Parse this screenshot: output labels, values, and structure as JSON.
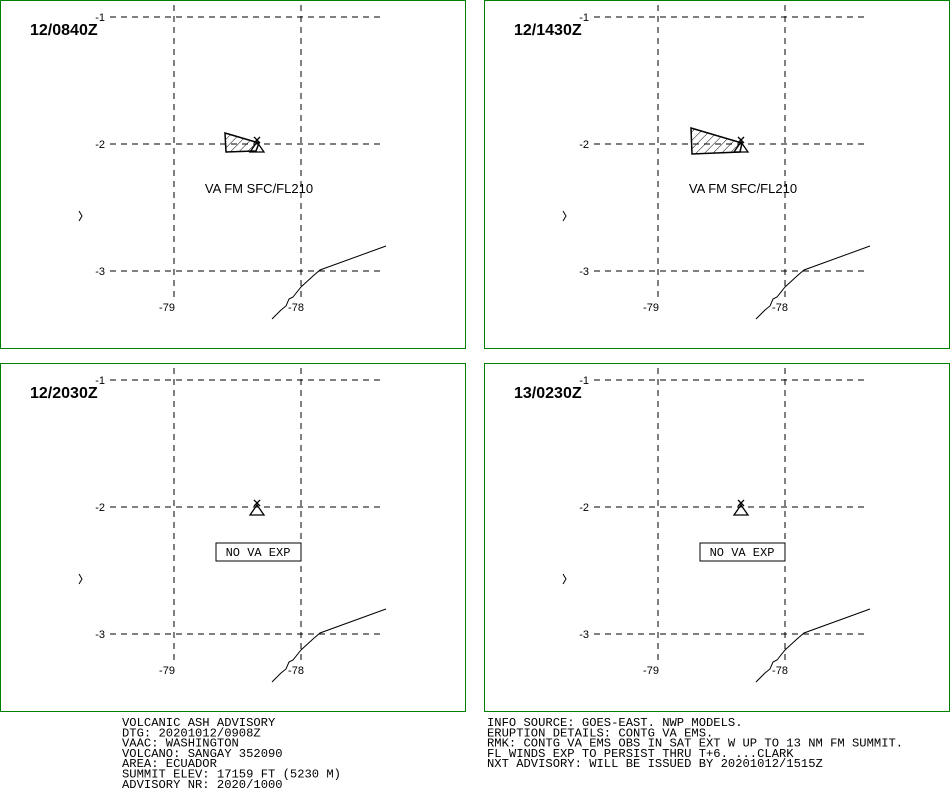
{
  "panels": [
    {
      "time": "12/0840Z",
      "lat_labels": [
        "-1",
        "-2",
        "-3"
      ],
      "lon_labels": [
        "-79",
        "-78"
      ],
      "label": "VA FM SFC/FL210",
      "label_boxed": false,
      "ash": "small"
    },
    {
      "time": "12/1430Z",
      "lat_labels": [
        "-1",
        "-2",
        "-3"
      ],
      "lon_labels": [
        "-79",
        "-78"
      ],
      "label": "VA FM SFC/FL210",
      "label_boxed": false,
      "ash": "large"
    },
    {
      "time": "12/2030Z",
      "lat_labels": [
        "-1",
        "-2",
        "-3"
      ],
      "lon_labels": [
        "-79",
        "-78"
      ],
      "label": "NO VA EXP",
      "label_boxed": true,
      "ash": "none"
    },
    {
      "time": "13/0230Z",
      "lat_labels": [
        "-1",
        "-2",
        "-3"
      ],
      "lon_labels": [
        "-79",
        "-78"
      ],
      "label": "NO VA EXP",
      "label_boxed": true,
      "ash": "none"
    }
  ],
  "advisory_left": [
    "VOLCANIC ASH ADVISORY",
    "DTG: 20201012/0908Z",
    "VAAC: WASHINGTON",
    "VOLCANO: SANGAY 352090",
    "AREA: ECUADOR",
    "SUMMIT ELEV: 17159 FT (5230 M)",
    "ADVISORY NR: 2020/1000"
  ],
  "advisory_right": [
    "INFO SOURCE: GOES-EAST. NWP MODELS.",
    "ERUPTION DETAILS: CONTG VA EMS.",
    "RMK: CONTG VA EMS OBS IN SAT EXT W UP TO 13 NM FM SUMMIT.",
    "FL WINDS EXP TO PERSIST THRU T+6. ...CLARK",
    "NXT ADVISORY: WILL BE ISSUED BY 20201012/1515Z"
  ],
  "colors": {
    "frame": "#008000",
    "ink": "#000000"
  }
}
